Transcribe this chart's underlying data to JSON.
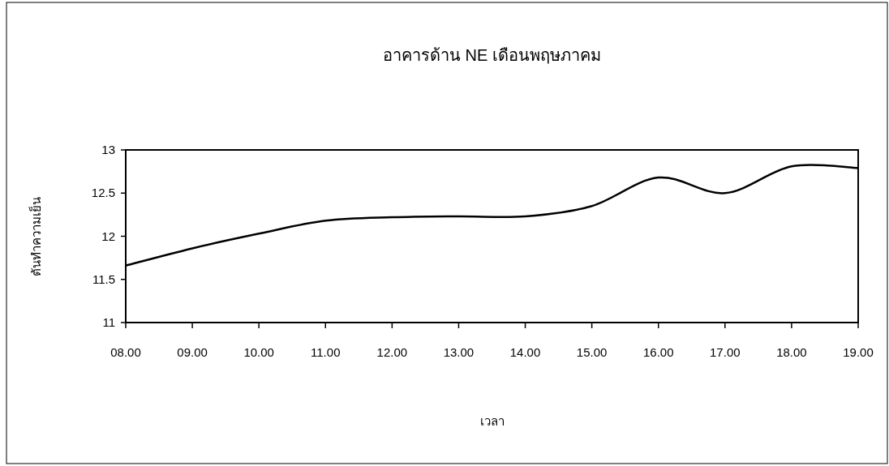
{
  "chart_data": {
    "type": "line",
    "title": "อาคารด้าน NE เดือนพฤษภาคม",
    "xlabel": "เวลา",
    "ylabel": "ตันทำความเย็น",
    "categories": [
      "08.00",
      "09.00",
      "10.00",
      "11.00",
      "12.00",
      "13.00",
      "14.00",
      "15.00",
      "16.00",
      "17.00",
      "18.00",
      "19.00"
    ],
    "series": [
      {
        "color": "#000000",
        "values": [
          11.66,
          11.86,
          12.03,
          12.18,
          12.22,
          12.23,
          12.23,
          12.35,
          12.68,
          12.5,
          12.81,
          12.79
        ]
      }
    ],
    "ylim": [
      11,
      13
    ],
    "yticks": [
      11,
      11.5,
      12,
      12.5,
      13
    ]
  }
}
